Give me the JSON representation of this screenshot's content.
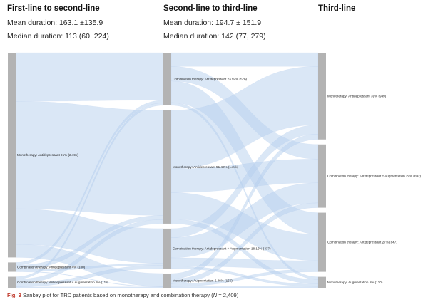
{
  "columns": [
    {
      "title": "First-line to second-line",
      "mean": "Mean duration: 163.1 ±135.9",
      "median": "Median duration: 113 (60, 224)"
    },
    {
      "title": "Second-line to third-line",
      "mean": "Mean duration: 194.7 ± 151.9",
      "median": "Median duration: 142 (77, 279)"
    },
    {
      "title": "Third-line"
    }
  ],
  "nodes": [
    {
      "id": "a1",
      "col": 0,
      "label": "Monotherapy: Antidepressant 91% (2.19k)",
      "value": 2190
    },
    {
      "id": "a2",
      "col": 0,
      "label": "Combination therapy: Antidepressant 4% (100)",
      "value": 100
    },
    {
      "id": "a3",
      "col": 0,
      "label": "Combination therapy: Antidepressant + Augmentation 5% (118)",
      "value": 118
    },
    {
      "id": "b1",
      "col": 1,
      "label": "Combination therapy: Antidepressant 23.92% (576)",
      "value": 576
    },
    {
      "id": "b2",
      "col": 1,
      "label": "Monotherapy: Antidepressant 51.48% (1.24k)",
      "value": 1240
    },
    {
      "id": "b3",
      "col": 1,
      "label": "Combination therapy: Antidepressant + Augmentation 18.15% (437)",
      "value": 437
    },
    {
      "id": "b4",
      "col": 1,
      "label": "Monotherapy: Augmentation 6.46% (156)",
      "value": 156
    },
    {
      "id": "c1",
      "col": 2,
      "label": "Monotherapy: Antidepressant 39% (949)",
      "value": 949
    },
    {
      "id": "c2",
      "col": 2,
      "label": "Combination therapy: Antidepressant + Augmentation 29% (692)",
      "value": 692
    },
    {
      "id": "c3",
      "col": 2,
      "label": "Combination therapy: Antidepressant 27% (647)",
      "value": 647
    },
    {
      "id": "c4",
      "col": 2,
      "label": "Monotherapy: Augmentation 5% (120)",
      "value": 120
    }
  ],
  "links": [
    {
      "source": "a1",
      "target": "b1",
      "value": 520
    },
    {
      "source": "a1",
      "target": "b2",
      "value": 1150
    },
    {
      "source": "a1",
      "target": "b3",
      "value": 380
    },
    {
      "source": "a1",
      "target": "b4",
      "value": 140
    },
    {
      "source": "a2",
      "target": "b1",
      "value": 30
    },
    {
      "source": "a2",
      "target": "b2",
      "value": 45
    },
    {
      "source": "a2",
      "target": "b3",
      "value": 20
    },
    {
      "source": "a2",
      "target": "b4",
      "value": 5
    },
    {
      "source": "a3",
      "target": "b1",
      "value": 26
    },
    {
      "source": "a3",
      "target": "b2",
      "value": 45
    },
    {
      "source": "a3",
      "target": "b3",
      "value": 37
    },
    {
      "source": "a3",
      "target": "b4",
      "value": 10
    },
    {
      "source": "b1",
      "target": "c1",
      "value": 150
    },
    {
      "source": "b1",
      "target": "c2",
      "value": 160
    },
    {
      "source": "b1",
      "target": "c3",
      "value": 236
    },
    {
      "source": "b1",
      "target": "c4",
      "value": 30
    },
    {
      "source": "b2",
      "target": "c1",
      "value": 640
    },
    {
      "source": "b2",
      "target": "c2",
      "value": 260
    },
    {
      "source": "b2",
      "target": "c3",
      "value": 290
    },
    {
      "source": "b2",
      "target": "c4",
      "value": 50
    },
    {
      "source": "b3",
      "target": "c1",
      "value": 100
    },
    {
      "source": "b3",
      "target": "c2",
      "value": 220
    },
    {
      "source": "b3",
      "target": "c3",
      "value": 90
    },
    {
      "source": "b3",
      "target": "c4",
      "value": 27
    },
    {
      "source": "b4",
      "target": "c1",
      "value": 59
    },
    {
      "source": "b4",
      "target": "c2",
      "value": 52
    },
    {
      "source": "b4",
      "target": "c3",
      "value": 31
    },
    {
      "source": "b4",
      "target": "c4",
      "value": 14
    }
  ],
  "colors": {
    "node": "#b3b3b3",
    "link": "#b6cfee",
    "caption_label": "#c0392b"
  },
  "caption": {
    "label": "Fig. 3",
    "text": "Sankey plot for TRD patients based on monotherapy and combination therapy (",
    "n": "N",
    "n_value": " = 2,409)"
  }
}
